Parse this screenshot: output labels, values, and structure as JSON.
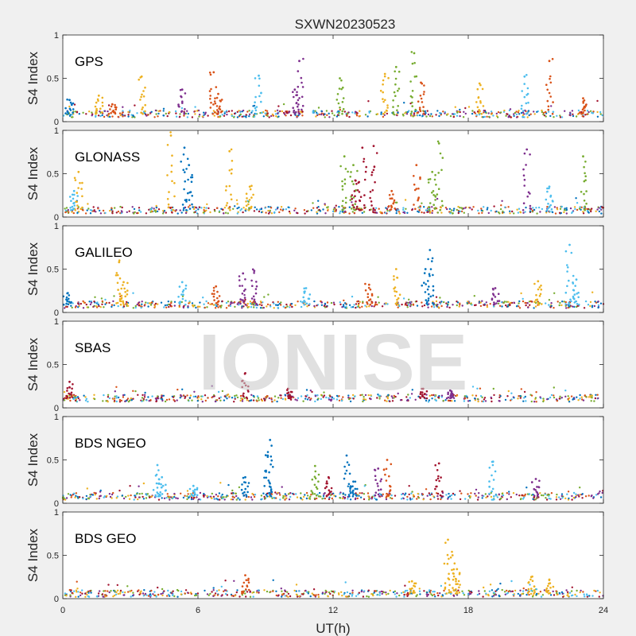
{
  "figure": {
    "title": "SXWN20230523",
    "xlabel": "UT(h)",
    "watermark": "IONISE"
  },
  "chart_data": {
    "type": "scatter",
    "title": "SXWN20230523",
    "xlabel": "UT(h)",
    "ylabel": "S4 Index",
    "xlim": [
      0,
      24
    ],
    "ylim": [
      0,
      1
    ],
    "xticks": [
      0,
      6,
      12,
      18,
      24
    ],
    "yticks": [
      0,
      0.5,
      1
    ],
    "ytick_labels": [
      "0",
      "0.5",
      "1"
    ],
    "colors": [
      "#0072BD",
      "#D95319",
      "#EDB120",
      "#7E2F8E",
      "#77AC30",
      "#4DBEEE",
      "#A2142F"
    ],
    "panels": [
      {
        "label": "GPS",
        "baseline": 0.09,
        "spikes": [
          {
            "t": 0.3,
            "s4": 0.25,
            "c": 0
          },
          {
            "t": 1.6,
            "s4": 0.3,
            "c": 2
          },
          {
            "t": 2.2,
            "s4": 0.2,
            "c": 1
          },
          {
            "t": 3.5,
            "s4": 0.52,
            "c": 2
          },
          {
            "t": 5.3,
            "s4": 0.37,
            "c": 3
          },
          {
            "t": 6.7,
            "s4": 0.57,
            "c": 1
          },
          {
            "t": 6.9,
            "s4": 0.32,
            "c": 1
          },
          {
            "t": 8.7,
            "s4": 0.53,
            "c": 5
          },
          {
            "t": 10.5,
            "s4": 0.7,
            "c": 3
          },
          {
            "t": 10.3,
            "s4": 0.37,
            "c": 3
          },
          {
            "t": 12.3,
            "s4": 0.5,
            "c": 4
          },
          {
            "t": 14.3,
            "s4": 0.55,
            "c": 2
          },
          {
            "t": 14.8,
            "s4": 0.63,
            "c": 4
          },
          {
            "t": 15.6,
            "s4": 0.79,
            "c": 4
          },
          {
            "t": 15.9,
            "s4": 0.45,
            "c": 1
          },
          {
            "t": 18.5,
            "s4": 0.44,
            "c": 2
          },
          {
            "t": 20.5,
            "s4": 0.52,
            "c": 5
          },
          {
            "t": 21.6,
            "s4": 0.7,
            "c": 1
          },
          {
            "t": 23.1,
            "s4": 0.27,
            "c": 1
          }
        ]
      },
      {
        "label": "GLONASS",
        "baseline": 0.08,
        "spikes": [
          {
            "t": 0.7,
            "s4": 0.52,
            "c": 2
          },
          {
            "t": 0.5,
            "s4": 0.3,
            "c": 5
          },
          {
            "t": 4.8,
            "s4": 0.94,
            "c": 2
          },
          {
            "t": 5.4,
            "s4": 0.8,
            "c": 0
          },
          {
            "t": 5.6,
            "s4": 0.6,
            "c": 0
          },
          {
            "t": 7.4,
            "s4": 0.76,
            "c": 2
          },
          {
            "t": 8.3,
            "s4": 0.35,
            "c": 2
          },
          {
            "t": 12.5,
            "s4": 0.7,
            "c": 4
          },
          {
            "t": 12.9,
            "s4": 0.6,
            "c": 4
          },
          {
            "t": 13.0,
            "s4": 0.42,
            "c": 6
          },
          {
            "t": 13.3,
            "s4": 0.8,
            "c": 6
          },
          {
            "t": 13.8,
            "s4": 0.82,
            "c": 6
          },
          {
            "t": 14.6,
            "s4": 0.3,
            "c": 1
          },
          {
            "t": 15.7,
            "s4": 0.6,
            "c": 1
          },
          {
            "t": 16.7,
            "s4": 0.85,
            "c": 4
          },
          {
            "t": 16.4,
            "s4": 0.52,
            "c": 4
          },
          {
            "t": 20.6,
            "s4": 0.78,
            "c": 3
          },
          {
            "t": 21.6,
            "s4": 0.35,
            "c": 5
          },
          {
            "t": 23.1,
            "s4": 0.7,
            "c": 4
          }
        ]
      },
      {
        "label": "GALILEO",
        "baseline": 0.09,
        "spikes": [
          {
            "t": 0.2,
            "s4": 0.22,
            "c": 0
          },
          {
            "t": 2.5,
            "s4": 0.58,
            "c": 2
          },
          {
            "t": 2.7,
            "s4": 0.35,
            "c": 2
          },
          {
            "t": 5.3,
            "s4": 0.35,
            "c": 5
          },
          {
            "t": 6.8,
            "s4": 0.3,
            "c": 1
          },
          {
            "t": 8.0,
            "s4": 0.45,
            "c": 3
          },
          {
            "t": 8.5,
            "s4": 0.48,
            "c": 3
          },
          {
            "t": 10.8,
            "s4": 0.28,
            "c": 5
          },
          {
            "t": 13.6,
            "s4": 0.32,
            "c": 1
          },
          {
            "t": 14.8,
            "s4": 0.5,
            "c": 2
          },
          {
            "t": 16.3,
            "s4": 0.72,
            "c": 0
          },
          {
            "t": 16.1,
            "s4": 0.5,
            "c": 0
          },
          {
            "t": 19.2,
            "s4": 0.28,
            "c": 3
          },
          {
            "t": 21.1,
            "s4": 0.36,
            "c": 2
          },
          {
            "t": 22.5,
            "s4": 0.78,
            "c": 5
          },
          {
            "t": 22.8,
            "s4": 0.38,
            "c": 5
          }
        ]
      },
      {
        "label": "SBAS",
        "baseline": 0.11,
        "spikes": [
          {
            "t": 0.3,
            "s4": 0.3,
            "c": 6
          },
          {
            "t": 8.1,
            "s4": 0.4,
            "c": 6
          },
          {
            "t": 10.0,
            "s4": 0.22,
            "c": 6
          },
          {
            "t": 16.0,
            "s4": 0.22,
            "c": 6
          },
          {
            "t": 17.2,
            "s4": 0.2,
            "c": 3
          }
        ]
      },
      {
        "label": "BDS NGEO",
        "baseline": 0.08,
        "spikes": [
          {
            "t": 4.2,
            "s4": 0.44,
            "c": 5
          },
          {
            "t": 4.4,
            "s4": 0.3,
            "c": 5
          },
          {
            "t": 5.8,
            "s4": 0.2,
            "c": 5
          },
          {
            "t": 8.1,
            "s4": 0.3,
            "c": 0
          },
          {
            "t": 9.2,
            "s4": 0.73,
            "c": 0
          },
          {
            "t": 9.1,
            "s4": 0.55,
            "c": 0
          },
          {
            "t": 11.2,
            "s4": 0.43,
            "c": 4
          },
          {
            "t": 11.8,
            "s4": 0.3,
            "c": 6
          },
          {
            "t": 12.6,
            "s4": 0.55,
            "c": 0
          },
          {
            "t": 12.9,
            "s4": 0.25,
            "c": 0
          },
          {
            "t": 14.4,
            "s4": 0.5,
            "c": 1
          },
          {
            "t": 14.0,
            "s4": 0.4,
            "c": 3
          },
          {
            "t": 16.7,
            "s4": 0.46,
            "c": 6
          },
          {
            "t": 19.1,
            "s4": 0.48,
            "c": 5
          },
          {
            "t": 21.0,
            "s4": 0.28,
            "c": 3
          }
        ]
      },
      {
        "label": "BDS GEO",
        "baseline": 0.06,
        "spikes": [
          {
            "t": 8.1,
            "s4": 0.27,
            "c": 1
          },
          {
            "t": 15.5,
            "s4": 0.2,
            "c": 2
          },
          {
            "t": 17.1,
            "s4": 0.68,
            "c": 2
          },
          {
            "t": 17.3,
            "s4": 0.5,
            "c": 2
          },
          {
            "t": 17.5,
            "s4": 0.34,
            "c": 2
          },
          {
            "t": 20.8,
            "s4": 0.25,
            "c": 2
          },
          {
            "t": 21.6,
            "s4": 0.22,
            "c": 2
          }
        ]
      }
    ]
  }
}
